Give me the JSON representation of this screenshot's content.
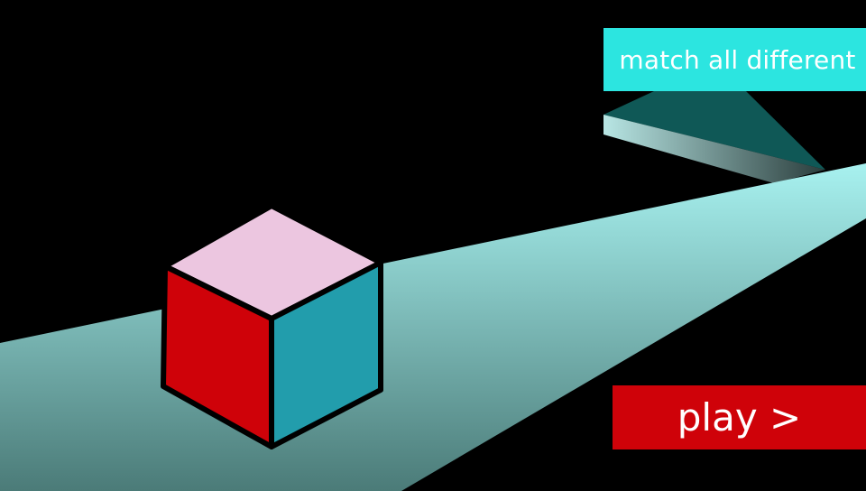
{
  "hint": {
    "label": "match all different"
  },
  "play_button": {
    "label": "play >"
  },
  "cube": {
    "faces": [
      {
        "name": "top",
        "color": "#ecc6e0"
      },
      {
        "name": "left",
        "color": "#cf0209"
      },
      {
        "name": "right",
        "color": "#229dac"
      }
    ]
  },
  "colors": {
    "background": "#000000",
    "hint_box": "#2ce5e0",
    "play_button": "#cf0209",
    "path_light": "#a8f2f0",
    "path_dark": "#4b7b78"
  }
}
